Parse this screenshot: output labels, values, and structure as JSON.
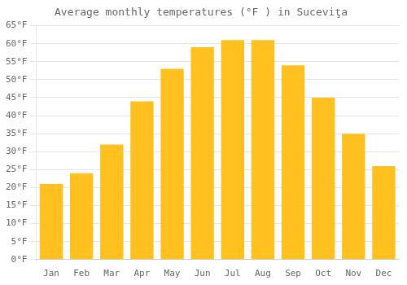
{
  "chart_data": {
    "type": "bar",
    "title": "Average monthly temperatures (°F ) in Suceviţa",
    "categories": [
      "Jan",
      "Feb",
      "Mar",
      "Apr",
      "May",
      "Jun",
      "Jul",
      "Aug",
      "Sep",
      "Oct",
      "Nov",
      "Dec"
    ],
    "values": [
      21,
      24,
      32,
      44,
      53,
      59,
      61,
      61,
      54,
      45,
      35,
      26
    ],
    "color": "#FFC020",
    "ylim": [
      0,
      65
    ],
    "yticks": [
      {
        "value": 0,
        "label": "0°F"
      },
      {
        "value": 5,
        "label": "5°F"
      },
      {
        "value": 10,
        "label": "10°F"
      },
      {
        "value": 15,
        "label": "15°F"
      },
      {
        "value": 20,
        "label": "20°F"
      },
      {
        "value": 25,
        "label": "25°F"
      },
      {
        "value": 30,
        "label": "30°F"
      },
      {
        "value": 35,
        "label": "35°F"
      },
      {
        "value": 40,
        "label": "40°F"
      },
      {
        "value": 45,
        "label": "45°F"
      },
      {
        "value": 50,
        "label": "50°F"
      },
      {
        "value": 55,
        "label": "55°F"
      },
      {
        "value": 60,
        "label": "60°F"
      },
      {
        "value": 65,
        "label": "65°F"
      }
    ],
    "grid": true
  }
}
